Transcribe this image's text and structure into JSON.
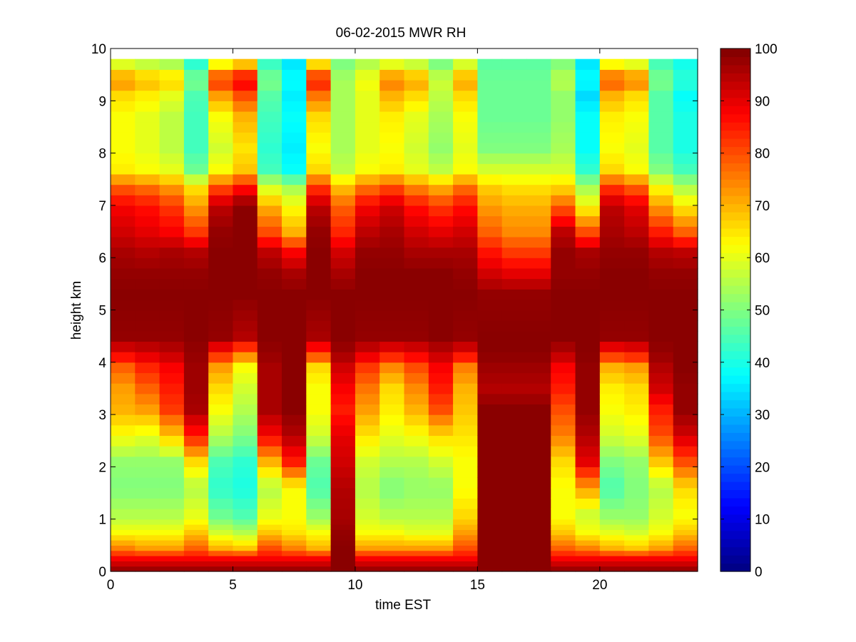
{
  "chart_data": {
    "type": "heatmap",
    "title": "06-02-2015 MWR RH",
    "xlabel": "time EST",
    "ylabel": "height km",
    "xlim": [
      0,
      24
    ],
    "ylim": [
      0,
      10
    ],
    "x_ticks": [
      0,
      5,
      10,
      15,
      20
    ],
    "y_ticks": [
      0,
      1,
      2,
      3,
      4,
      5,
      6,
      7,
      8,
      9,
      10
    ],
    "colorbar": {
      "colormap": "jet",
      "range": [
        0,
        100
      ],
      "ticks": [
        0,
        10,
        20,
        30,
        40,
        50,
        60,
        70,
        80,
        90,
        100
      ]
    },
    "x": [
      0,
      1,
      2,
      3,
      4,
      5,
      6,
      7,
      8,
      9,
      10,
      11,
      12,
      13,
      14,
      15,
      16,
      17,
      18,
      19,
      20,
      21,
      22,
      23
    ],
    "heights": [
      0.0,
      0.1,
      0.2,
      0.3,
      0.4,
      0.5,
      0.6,
      0.7,
      0.8,
      0.9,
      1.0,
      1.2,
      1.4,
      1.6,
      1.8,
      2.0,
      2.2,
      2.4,
      2.6,
      2.8,
      3.0,
      3.2,
      3.4,
      3.6,
      3.8,
      4.0,
      4.2,
      4.4,
      4.6,
      4.8,
      5.0,
      5.2,
      5.4,
      5.6,
      5.8,
      6.0,
      6.2,
      6.4,
      6.6,
      6.8,
      7.0,
      7.2,
      7.4,
      7.6,
      7.8,
      8.0,
      8.2,
      8.4,
      8.6,
      8.8,
      9.0,
      9.2,
      9.4,
      9.6
    ],
    "anchors": [
      [
        0.0,
        [
          97,
          97,
          97,
          97,
          97,
          97,
          97,
          97,
          97,
          99,
          97,
          97,
          97,
          97,
          97,
          99,
          99,
          99,
          97,
          97,
          97,
          97,
          97,
          97
        ]
      ],
      [
        0.2,
        [
          88,
          88,
          88,
          88,
          88,
          88,
          88,
          88,
          88,
          99,
          88,
          88,
          88,
          88,
          88,
          99,
          99,
          99,
          88,
          88,
          88,
          88,
          88,
          88
        ]
      ],
      [
        0.4,
        [
          75,
          72,
          72,
          78,
          70,
          68,
          80,
          75,
          70,
          99,
          72,
          72,
          72,
          72,
          80,
          99,
          99,
          99,
          78,
          75,
          70,
          68,
          72,
          78
        ]
      ],
      [
        0.7,
        [
          62,
          62,
          62,
          68,
          58,
          55,
          68,
          65,
          62,
          98,
          62,
          62,
          60,
          60,
          72,
          99,
          99,
          99,
          68,
          62,
          60,
          58,
          62,
          68
        ]
      ],
      [
        1.0,
        [
          55,
          55,
          55,
          60,
          48,
          45,
          60,
          62,
          52,
          96,
          58,
          55,
          55,
          55,
          66,
          99,
          99,
          99,
          62,
          58,
          52,
          52,
          58,
          62
        ]
      ],
      [
        1.5,
        [
          50,
          50,
          50,
          55,
          42,
          40,
          55,
          62,
          45,
          95,
          55,
          50,
          52,
          52,
          62,
          99,
          99,
          99,
          62,
          72,
          45,
          50,
          55,
          66
        ]
      ],
      [
        2.0,
        [
          52,
          52,
          52,
          66,
          45,
          42,
          70,
          85,
          48,
          92,
          58,
          55,
          55,
          58,
          62,
          99,
          99,
          99,
          66,
          90,
          50,
          52,
          68,
          80
        ]
      ],
      [
        2.5,
        [
          62,
          60,
          68,
          85,
          55,
          50,
          88,
          95,
          58,
          90,
          65,
          60,
          62,
          66,
          65,
          99,
          99,
          99,
          75,
          95,
          58,
          60,
          80,
          92
        ]
      ],
      [
        3.0,
        [
          70,
          72,
          82,
          96,
          62,
          55,
          96,
          99,
          62,
          85,
          72,
          64,
          70,
          80,
          68,
          99,
          99,
          99,
          80,
          98,
          62,
          64,
          85,
          98
        ]
      ],
      [
        3.4,
        [
          72,
          78,
          85,
          97,
          66,
          58,
          96,
          99,
          62,
          88,
          76,
          66,
          74,
          85,
          70,
          95,
          95,
          95,
          85,
          98,
          64,
          66,
          92,
          98
        ]
      ],
      [
        3.8,
        [
          78,
          84,
          88,
          97,
          72,
          62,
          96,
          99,
          66,
          92,
          82,
          74,
          80,
          88,
          75,
          97,
          97,
          97,
          88,
          98,
          70,
          72,
          95,
          99
        ]
      ],
      [
        4.1,
        [
          90,
          92,
          94,
          98,
          86,
          78,
          98,
          99,
          84,
          97,
          92,
          88,
          90,
          94,
          90,
          99,
          99,
          99,
          95,
          99,
          86,
          88,
          98,
          99
        ]
      ],
      [
        4.4,
        [
          98,
          98,
          98,
          99,
          98,
          95,
          99,
          99,
          96,
          99,
          98,
          98,
          98,
          99,
          98,
          99,
          99,
          99,
          99,
          99,
          98,
          98,
          99,
          99
        ]
      ],
      [
        5.2,
        [
          99,
          99,
          99,
          99,
          99,
          99,
          99,
          99,
          99,
          99,
          99,
          99,
          99,
          99,
          99,
          98,
          98,
          98,
          99,
          99,
          99,
          99,
          99,
          99
        ]
      ],
      [
        5.6,
        [
          98,
          98,
          98,
          98,
          99,
          99,
          98,
          96,
          99,
          96,
          99,
          99,
          99,
          99,
          98,
          92,
          90,
          90,
          98,
          98,
          99,
          99,
          98,
          98
        ]
      ],
      [
        6.0,
        [
          96,
          95,
          96,
          95,
          99,
          99,
          94,
          88,
          99,
          92,
          98,
          98,
          96,
          96,
          96,
          86,
          82,
          82,
          98,
          96,
          98,
          98,
          95,
          94
        ]
      ],
      [
        6.4,
        [
          92,
          90,
          88,
          82,
          98,
          99,
          80,
          70,
          98,
          84,
          94,
          96,
          92,
          90,
          92,
          78,
          74,
          74,
          94,
          80,
          96,
          94,
          85,
          78
        ]
      ],
      [
        6.9,
        [
          88,
          86,
          82,
          72,
          94,
          99,
          70,
          62,
          94,
          78,
          88,
          92,
          86,
          82,
          86,
          72,
          70,
          70,
          78,
          62,
          94,
          90,
          72,
          64
        ]
      ],
      [
        7.2,
        [
          80,
          78,
          74,
          66,
          82,
          88,
          60,
          55,
          84,
          70,
          78,
          82,
          76,
          72,
          78,
          68,
          66,
          66,
          68,
          55,
          84,
          80,
          64,
          56
        ]
      ],
      [
        7.6,
        [
          64,
          62,
          60,
          48,
          62,
          68,
          44,
          38,
          66,
          56,
          62,
          64,
          60,
          56,
          62,
          58,
          58,
          58,
          58,
          42,
          66,
          62,
          50,
          44
        ]
      ],
      [
        8.0,
        [
          62,
          60,
          56,
          44,
          58,
          65,
          42,
          36,
          62,
          54,
          60,
          62,
          58,
          52,
          60,
          50,
          50,
          50,
          54,
          38,
          62,
          60,
          46,
          40
        ]
      ],
      [
        8.6,
        [
          62,
          60,
          56,
          44,
          62,
          70,
          44,
          38,
          66,
          54,
          60,
          64,
          60,
          54,
          62,
          48,
          48,
          48,
          52,
          38,
          64,
          62,
          46,
          40
        ]
      ],
      [
        9.0,
        [
          66,
          64,
          60,
          45,
          72,
          80,
          46,
          36,
          76,
          54,
          60,
          70,
          66,
          56,
          66,
          48,
          48,
          48,
          52,
          34,
          70,
          66,
          46,
          38
        ]
      ],
      [
        9.3,
        [
          74,
          70,
          68,
          50,
          84,
          90,
          50,
          38,
          86,
          54,
          62,
          76,
          72,
          58,
          72,
          48,
          48,
          48,
          56,
          38,
          80,
          76,
          50,
          42
        ]
      ],
      [
        9.75,
        [
          52,
          50,
          48,
          38,
          52,
          58,
          40,
          34,
          56,
          48,
          52,
          52,
          50,
          46,
          52,
          46,
          46,
          46,
          48,
          34,
          54,
          52,
          42,
          38
        ]
      ]
    ]
  }
}
